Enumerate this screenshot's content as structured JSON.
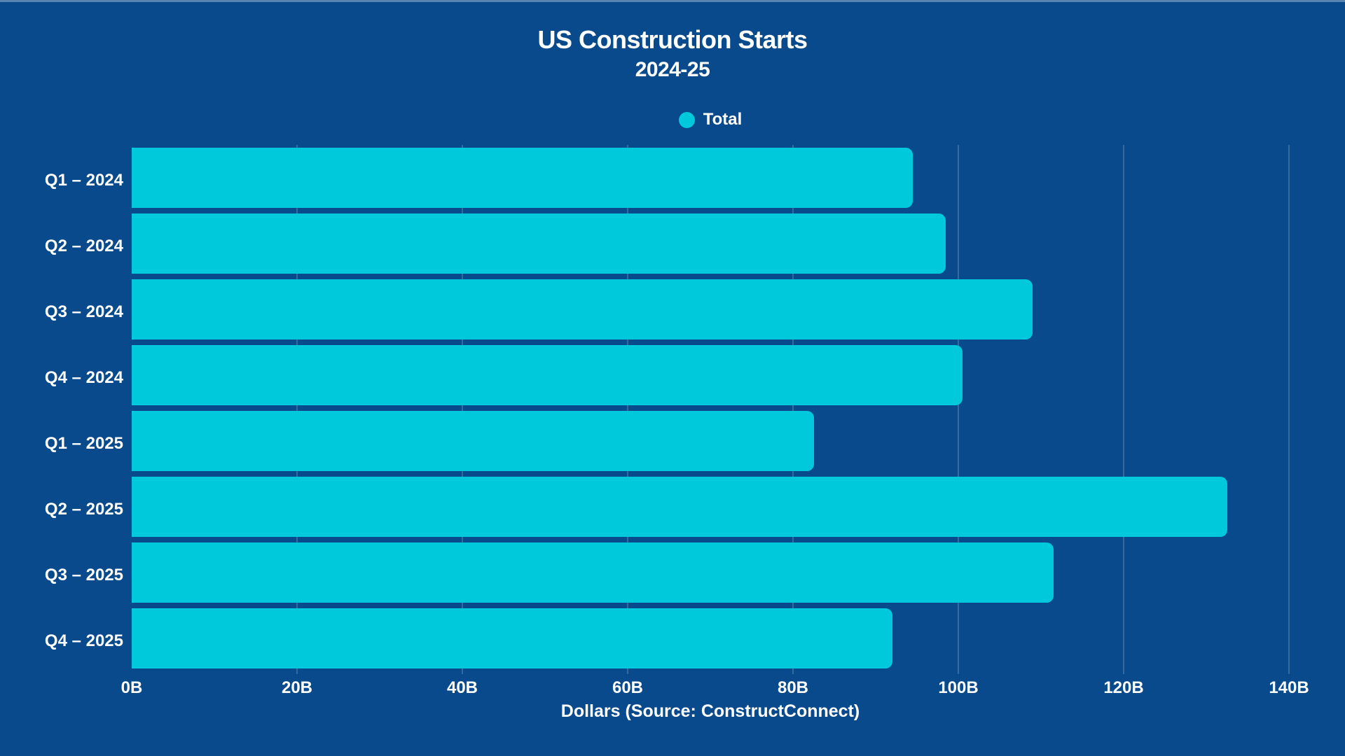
{
  "title": "US Construction Starts",
  "subtitle": "2024-25",
  "legend": {
    "label": "Total"
  },
  "colors": {
    "background": "#084A8C",
    "accent": "#00C9DC",
    "text": "#FFFFFF",
    "gridline": "rgba(255,255,255,0.18)"
  },
  "chart_data": {
    "type": "bar",
    "orientation": "horizontal",
    "title": "US Construction Starts",
    "subtitle": "2024-25",
    "xlabel": "Dollars (Source: ConstructConnect)",
    "ylabel": "",
    "categories": [
      "Q1 – 2024",
      "Q2 – 2024",
      "Q3 – 2024",
      "Q4 – 2024",
      "Q1 – 2025",
      "Q2 – 2025",
      "Q3 – 2025",
      "Q4 – 2025"
    ],
    "series": [
      {
        "name": "Total",
        "values": [
          94.5,
          98.5,
          109,
          100.5,
          82.5,
          132.5,
          111.5,
          92
        ]
      }
    ],
    "value_unit": "billions of dollars",
    "x_ticks": [
      "0B",
      "20B",
      "40B",
      "60B",
      "80B",
      "100B",
      "120B",
      "140B"
    ],
    "xlim": [
      0,
      140
    ],
    "grid": true,
    "legend_position": "top"
  }
}
